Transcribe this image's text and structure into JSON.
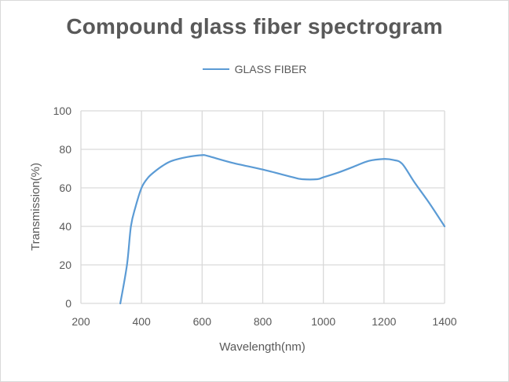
{
  "chart": {
    "title": "Compound glass fiber spectrogram",
    "legend": [
      {
        "label": "GLASS FIBER",
        "color": "#5b9bd5"
      }
    ],
    "xlabel": "Wavelength(nm)",
    "ylabel": "Transmission(%)"
  },
  "chart_data": {
    "type": "line",
    "title": "Compound glass fiber spectrogram",
    "xlabel": "Wavelength(nm)",
    "ylabel": "Transmission(%)",
    "xlim": [
      200,
      1400
    ],
    "ylim": [
      0,
      100
    ],
    "xticks": [
      200,
      400,
      600,
      800,
      1000,
      1200,
      1400
    ],
    "yticks": [
      0,
      20,
      40,
      60,
      80,
      100
    ],
    "grid": true,
    "legend_position": "top",
    "series": [
      {
        "name": "GLASS FIBER",
        "color": "#5b9bd5",
        "x": [
          330,
          352,
          365,
          380,
          400,
          420,
          440,
          470,
          500,
          550,
          600,
          620,
          700,
          800,
          900,
          930,
          980,
          1000,
          1050,
          1100,
          1150,
          1200,
          1230,
          1260,
          1300,
          1350,
          1400
        ],
        "y": [
          0,
          20,
          40,
          50,
          60,
          65,
          68,
          71.5,
          74,
          76,
          77,
          76.5,
          73,
          69.5,
          65.5,
          64.5,
          64.5,
          65.5,
          68,
          71,
          74,
          75,
          74.5,
          72.5,
          63,
          52,
          40
        ]
      }
    ]
  }
}
